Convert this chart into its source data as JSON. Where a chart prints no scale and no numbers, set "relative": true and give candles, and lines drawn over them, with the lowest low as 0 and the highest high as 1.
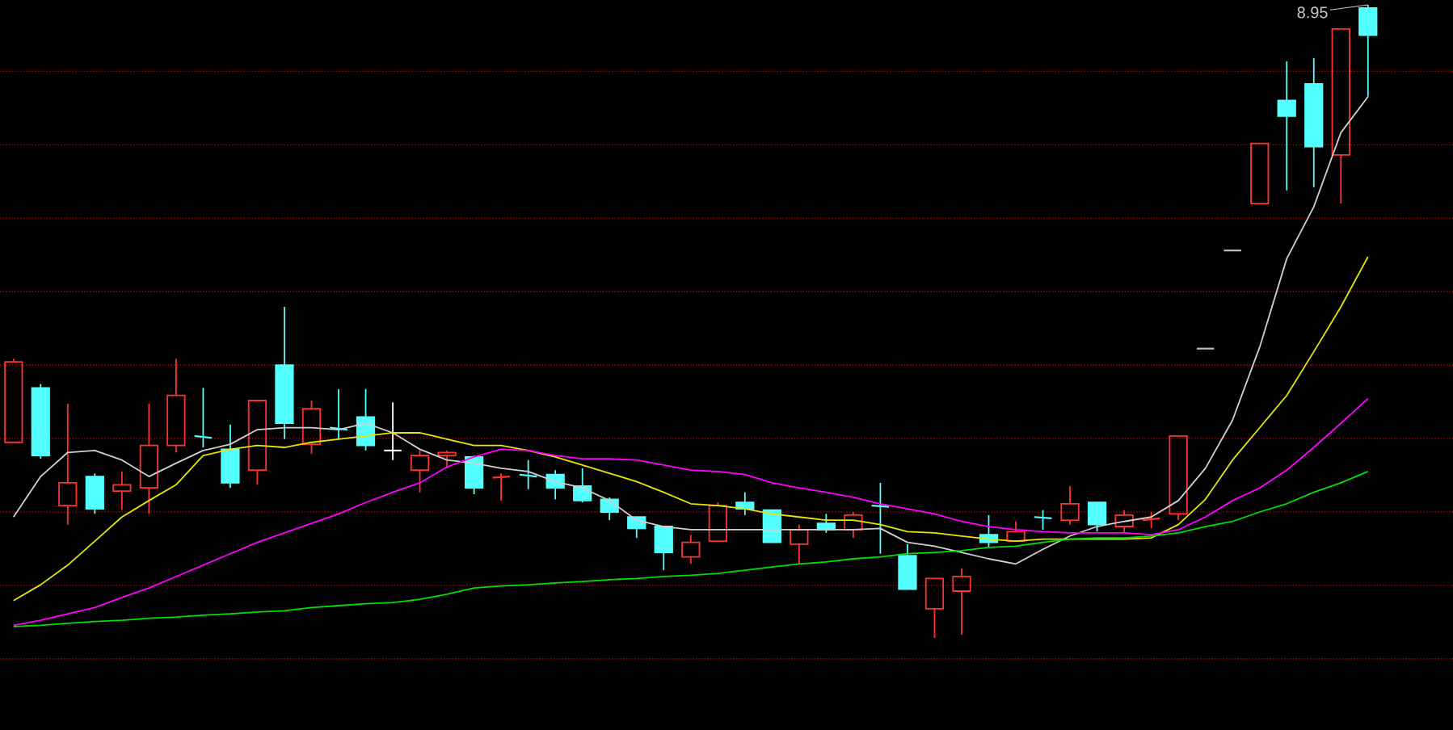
{
  "chart_data": {
    "type": "candlestick",
    "relative": true,
    "ref_lines": [
      {
        "axis": "y",
        "value": 0.895,
        "color": "#960000",
        "line_style": "dotted"
      },
      {
        "axis": "y",
        "value": 0.779,
        "color": "#960000",
        "line_style": "dotted"
      },
      {
        "axis": "y",
        "value": 0.663,
        "color": "#960000",
        "line_style": "dotted"
      },
      {
        "axis": "y",
        "value": 0.547,
        "color": "#960000",
        "line_style": "dotted"
      },
      {
        "axis": "y",
        "value": 0.431,
        "color": "#960000",
        "line_style": "dotted"
      },
      {
        "axis": "y",
        "value": 0.315,
        "color": "#960000",
        "line_style": "dotted"
      },
      {
        "axis": "y",
        "value": 0.199,
        "color": "#960000",
        "line_style": "dotted"
      },
      {
        "axis": "y",
        "value": 0.083,
        "color": "#960000",
        "line_style": "dotted"
      },
      {
        "axis": "y",
        "value": -0.033,
        "color": "#960000",
        "line_style": "dotted"
      }
    ],
    "categories": [
      null,
      null,
      null,
      null,
      null,
      null,
      null,
      null,
      null,
      null,
      null,
      null,
      null,
      null,
      null,
      null,
      null,
      null,
      null,
      null,
      null,
      null,
      null,
      null,
      null,
      null,
      null,
      null,
      null,
      null,
      null,
      null,
      null,
      null,
      null,
      null,
      null,
      null,
      null,
      null,
      null,
      null,
      null,
      null,
      null,
      null,
      null,
      null,
      null,
      null,
      null
    ],
    "ohlc": [
      [
        0.309,
        0.441,
        0.309,
        0.436
      ],
      [
        0.395,
        0.401,
        0.283,
        0.288
      ],
      [
        0.209,
        0.37,
        0.179,
        0.245
      ],
      [
        0.255,
        0.26,
        0.196,
        0.204
      ],
      [
        0.232,
        0.263,
        0.202,
        0.242
      ],
      [
        0.237,
        0.37,
        0.196,
        0.304
      ],
      [
        0.304,
        0.441,
        0.293,
        0.383
      ],
      [
        0.319,
        0.395,
        0.301,
        0.316
      ],
      [
        0.298,
        0.337,
        0.237,
        0.245
      ],
      [
        0.265,
        0.375,
        0.242,
        0.375
      ],
      [
        0.431,
        0.523,
        0.314,
        0.339
      ],
      [
        0.306,
        0.375,
        0.291,
        0.362
      ],
      [
        0.332,
        0.393,
        0.314,
        0.329
      ],
      [
        0.349,
        0.393,
        0.296,
        0.304
      ],
      [
        0.296,
        0.372,
        0.281,
        0.296
      ],
      [
        0.265,
        0.296,
        0.23,
        0.288
      ],
      [
        0.288,
        0.296,
        0.268,
        0.293
      ],
      [
        0.286,
        0.288,
        0.227,
        0.237
      ],
      [
        0.253,
        0.26,
        0.217,
        0.255
      ],
      [
        0.258,
        0.281,
        0.235,
        0.255
      ],
      [
        0.258,
        0.265,
        0.219,
        0.237
      ],
      [
        0.24,
        0.268,
        0.214,
        0.217
      ],
      [
        0.219,
        0.222,
        0.186,
        0.199
      ],
      [
        0.191,
        0.191,
        0.158,
        0.173
      ],
      [
        0.176,
        0.176,
        0.107,
        0.135
      ],
      [
        0.128,
        0.163,
        0.117,
        0.151
      ],
      [
        0.153,
        0.214,
        0.153,
        0.209
      ],
      [
        0.214,
        0.23,
        0.194,
        0.204
      ],
      [
        0.202,
        0.202,
        0.151,
        0.151
      ],
      [
        0.148,
        0.179,
        0.117,
        0.171
      ],
      [
        0.181,
        0.196,
        0.166,
        0.171
      ],
      [
        0.171,
        0.199,
        0.158,
        0.194
      ],
      [
        0.209,
        0.245,
        0.133,
        0.207
      ],
      [
        0.13,
        0.148,
        0.077,
        0.077
      ],
      [
        0.046,
        0.094,
        0.0,
        0.094
      ],
      [
        0.074,
        0.11,
        0.005,
        0.097
      ],
      [
        0.163,
        0.194,
        0.143,
        0.151
      ],
      [
        0.153,
        0.184,
        0.153,
        0.168
      ],
      [
        0.191,
        0.202,
        0.171,
        0.189
      ],
      [
        0.186,
        0.24,
        0.179,
        0.212
      ],
      [
        0.214,
        0.214,
        0.168,
        0.179
      ],
      [
        0.176,
        0.202,
        0.166,
        0.194
      ],
      [
        0.186,
        0.199,
        0.173,
        0.189
      ],
      [
        0.196,
        0.319,
        0.186,
        0.319
      ],
      [
        0.457,
        0.457,
        0.457,
        0.457
      ],
      [
        0.612,
        0.612,
        0.612,
        0.612
      ],
      [
        0.686,
        0.781,
        0.686,
        0.781
      ],
      [
        0.849,
        0.911,
        0.707,
        0.824
      ],
      [
        0.875,
        0.916,
        0.712,
        0.776
      ],
      [
        0.763,
        0.962,
        0.686,
        0.962
      ],
      [
        0.995,
        1.0,
        0.855,
        0.952
      ]
    ],
    "colors": [
      "#ff3232",
      "#54ffff",
      "#ff3232",
      "#54ffff",
      "#ff3232",
      "#ff3232",
      "#ff3232",
      "#54ffff",
      "#54ffff",
      "#ff3232",
      "#54ffff",
      "#ff3232",
      "#54ffff",
      "#54ffff",
      "#ffffff",
      "#ff3232",
      "#ff3232",
      "#54ffff",
      "#ff3232",
      "#54ffff",
      "#54ffff",
      "#54ffff",
      "#54ffff",
      "#54ffff",
      "#54ffff",
      "#ff3232",
      "#ff3232",
      "#54ffff",
      "#54ffff",
      "#ff3232",
      "#54ffff",
      "#ff3232",
      "#54ffff",
      "#54ffff",
      "#ff3232",
      "#ff3232",
      "#54ffff",
      "#ff3232",
      "#54ffff",
      "#ff3232",
      "#54ffff",
      "#ff3232",
      "#ff3232",
      "#ff3232",
      "#c0c0c0",
      "#c0c0c0",
      "#ff3232",
      "#54ffff",
      "#54ffff",
      "#ff3232",
      "#54ffff"
    ],
    "series": [
      {
        "type": "line",
        "color": "#d0d0d0",
        "values": [
          0.191,
          0.255,
          0.293,
          0.296,
          0.281,
          0.255,
          0.276,
          0.296,
          0.306,
          0.329,
          0.332,
          0.332,
          0.329,
          0.339,
          0.324,
          0.298,
          0.281,
          0.276,
          0.268,
          0.263,
          0.247,
          0.237,
          0.217,
          0.186,
          0.176,
          0.171,
          0.171,
          0.171,
          0.171,
          0.171,
          0.171,
          0.171,
          0.173,
          0.151,
          0.145,
          0.135,
          0.125,
          0.117,
          0.14,
          0.161,
          0.176,
          0.184,
          0.191,
          0.217,
          0.268,
          0.344,
          0.459,
          0.599,
          0.681,
          0.798,
          0.855
        ]
      },
      {
        "type": "line",
        "color": "#e6e600",
        "values": [
          0.059,
          0.084,
          0.115,
          0.153,
          0.191,
          0.217,
          0.242,
          0.288,
          0.298,
          0.304,
          0.301,
          0.309,
          0.314,
          0.319,
          0.324,
          0.324,
          0.314,
          0.304,
          0.304,
          0.296,
          0.286,
          0.273,
          0.26,
          0.247,
          0.23,
          0.212,
          0.209,
          0.204,
          0.196,
          0.191,
          0.186,
          0.186,
          0.179,
          0.168,
          0.166,
          0.161,
          0.156,
          0.153,
          0.156,
          0.156,
          0.156,
          0.156,
          0.158,
          0.179,
          0.219,
          0.281,
          0.332,
          0.383,
          0.452,
          0.523,
          0.602
        ]
      },
      {
        "type": "line",
        "color": "#ff00ff",
        "values": [
          0.02,
          0.028,
          0.038,
          0.048,
          0.064,
          0.079,
          0.097,
          0.115,
          0.133,
          0.151,
          0.166,
          0.181,
          0.196,
          0.214,
          0.23,
          0.245,
          0.27,
          0.286,
          0.298,
          0.296,
          0.288,
          0.283,
          0.283,
          0.281,
          0.273,
          0.265,
          0.263,
          0.258,
          0.245,
          0.237,
          0.23,
          0.222,
          0.212,
          0.204,
          0.196,
          0.184,
          0.176,
          0.171,
          0.168,
          0.166,
          0.166,
          0.166,
          0.163,
          0.171,
          0.191,
          0.217,
          0.237,
          0.265,
          0.301,
          0.339,
          0.378
        ]
      },
      {
        "type": "line",
        "color": "#00e000",
        "values": [
          0.018,
          0.02,
          0.023,
          0.026,
          0.028,
          0.031,
          0.033,
          0.036,
          0.038,
          0.041,
          0.043,
          0.048,
          0.051,
          0.054,
          0.056,
          0.061,
          0.069,
          0.079,
          0.082,
          0.084,
          0.087,
          0.089,
          0.092,
          0.094,
          0.097,
          0.099,
          0.102,
          0.107,
          0.112,
          0.117,
          0.12,
          0.125,
          0.128,
          0.133,
          0.135,
          0.138,
          0.143,
          0.145,
          0.151,
          0.156,
          0.158,
          0.158,
          0.161,
          0.166,
          0.176,
          0.184,
          0.199,
          0.212,
          0.23,
          0.245,
          0.263
        ]
      }
    ],
    "annotations": [
      "8.95"
    ]
  }
}
